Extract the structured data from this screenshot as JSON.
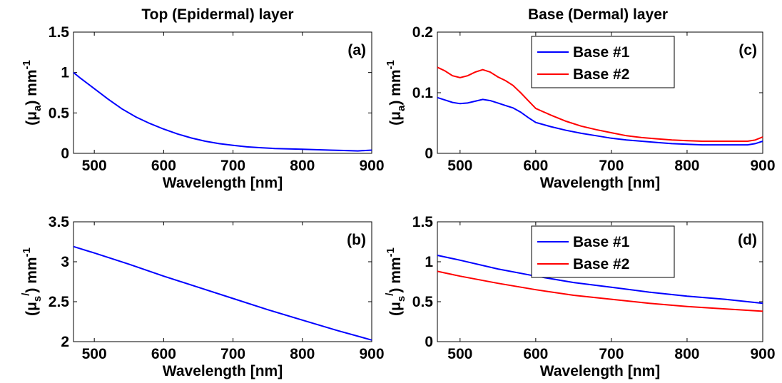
{
  "column_titles": [
    "Top (Epidermal) layer",
    "Base (Dermal) layer"
  ],
  "colors": {
    "blue": "#0000ff",
    "red": "#ff0000",
    "axis": "#000000"
  },
  "chart_data": [
    {
      "type": "line",
      "panel_label": "(a)",
      "column": "Top (Epidermal) layer",
      "xlabel": "Wavelength [nm]",
      "ylabel": {
        "prefix": "(μ",
        "sub": "a",
        "suffix": ") mm",
        "sup": "-1"
      },
      "xlim": [
        470,
        900
      ],
      "ylim": [
        0,
        1.5
      ],
      "xticks": [
        500,
        600,
        700,
        800,
        900
      ],
      "yticks": [
        0,
        0.5,
        1,
        1.5
      ],
      "legend": null,
      "series": [
        {
          "color": "#0000ff",
          "x": [
            470,
            480,
            500,
            520,
            540,
            560,
            580,
            600,
            620,
            640,
            660,
            680,
            700,
            720,
            740,
            760,
            780,
            800,
            820,
            840,
            860,
            880,
            900
          ],
          "y": [
            1.0,
            0.93,
            0.8,
            0.67,
            0.55,
            0.45,
            0.37,
            0.3,
            0.24,
            0.19,
            0.15,
            0.12,
            0.1,
            0.08,
            0.07,
            0.06,
            0.055,
            0.05,
            0.045,
            0.04,
            0.035,
            0.03,
            0.04
          ]
        }
      ]
    },
    {
      "type": "line",
      "panel_label": "(b)",
      "column": "Top (Epidermal) layer",
      "xlabel": "Wavelength [nm]",
      "ylabel": {
        "prefix": "(μ",
        "sub": "s",
        "suffix": ") mm",
        "sup": "-1",
        "prime": "/"
      },
      "xlim": [
        470,
        900
      ],
      "ylim": [
        2,
        3.5
      ],
      "xticks": [
        500,
        600,
        700,
        800,
        900
      ],
      "yticks": [
        2,
        2.5,
        3,
        3.5
      ],
      "legend": null,
      "series": [
        {
          "color": "#0000ff",
          "x": [
            470,
            500,
            550,
            600,
            650,
            700,
            750,
            800,
            850,
            900
          ],
          "y": [
            3.19,
            3.11,
            2.97,
            2.82,
            2.68,
            2.54,
            2.4,
            2.27,
            2.14,
            2.02
          ]
        }
      ]
    },
    {
      "type": "line",
      "panel_label": "(c)",
      "column": "Base (Dermal) layer",
      "xlabel": "Wavelength [nm]",
      "ylabel": {
        "prefix": "(μ",
        "sub": "a",
        "suffix": ") mm",
        "sup": "-1"
      },
      "xlim": [
        470,
        900
      ],
      "ylim": [
        0,
        0.2
      ],
      "xticks": [
        500,
        600,
        700,
        800,
        900
      ],
      "yticks": [
        0,
        0.1,
        0.2
      ],
      "legend": "top-right",
      "series": [
        {
          "name": "Base #1",
          "color": "#0000ff",
          "x": [
            470,
            480,
            490,
            500,
            510,
            520,
            530,
            540,
            550,
            560,
            570,
            580,
            590,
            600,
            620,
            640,
            660,
            680,
            700,
            720,
            740,
            760,
            780,
            800,
            820,
            840,
            860,
            880,
            890,
            900
          ],
          "y": [
            0.092,
            0.088,
            0.084,
            0.082,
            0.083,
            0.086,
            0.089,
            0.087,
            0.083,
            0.079,
            0.075,
            0.068,
            0.059,
            0.051,
            0.044,
            0.038,
            0.033,
            0.029,
            0.025,
            0.022,
            0.02,
            0.018,
            0.016,
            0.015,
            0.014,
            0.014,
            0.014,
            0.014,
            0.016,
            0.02
          ]
        },
        {
          "name": "Base #2",
          "color": "#ff0000",
          "x": [
            470,
            480,
            490,
            500,
            510,
            520,
            530,
            540,
            550,
            560,
            570,
            580,
            590,
            600,
            620,
            640,
            660,
            680,
            700,
            720,
            740,
            760,
            780,
            800,
            820,
            840,
            860,
            880,
            890,
            900
          ],
          "y": [
            0.142,
            0.136,
            0.128,
            0.125,
            0.128,
            0.134,
            0.138,
            0.134,
            0.126,
            0.12,
            0.112,
            0.1,
            0.087,
            0.074,
            0.063,
            0.053,
            0.045,
            0.039,
            0.034,
            0.029,
            0.026,
            0.024,
            0.022,
            0.021,
            0.02,
            0.02,
            0.02,
            0.02,
            0.022,
            0.027
          ]
        }
      ]
    },
    {
      "type": "line",
      "panel_label": "(d)",
      "column": "Base (Dermal) layer",
      "xlabel": "Wavelength [nm]",
      "ylabel": {
        "prefix": "(μ",
        "sub": "s",
        "suffix": ") mm",
        "sup": "-1",
        "prime": "/"
      },
      "xlim": [
        470,
        900
      ],
      "ylim": [
        0,
        1.5
      ],
      "xticks": [
        500,
        600,
        700,
        800,
        900
      ],
      "yticks": [
        0,
        0.5,
        1,
        1.5
      ],
      "legend": "top-right",
      "series": [
        {
          "name": "Base #1",
          "color": "#0000ff",
          "x": [
            470,
            500,
            550,
            600,
            650,
            700,
            750,
            800,
            850,
            900
          ],
          "y": [
            1.08,
            1.02,
            0.91,
            0.82,
            0.74,
            0.68,
            0.62,
            0.57,
            0.53,
            0.48
          ]
        },
        {
          "name": "Base #2",
          "color": "#ff0000",
          "x": [
            470,
            500,
            550,
            600,
            650,
            700,
            750,
            800,
            850,
            900
          ],
          "y": [
            0.88,
            0.82,
            0.73,
            0.65,
            0.58,
            0.53,
            0.48,
            0.44,
            0.41,
            0.38
          ]
        }
      ]
    }
  ]
}
